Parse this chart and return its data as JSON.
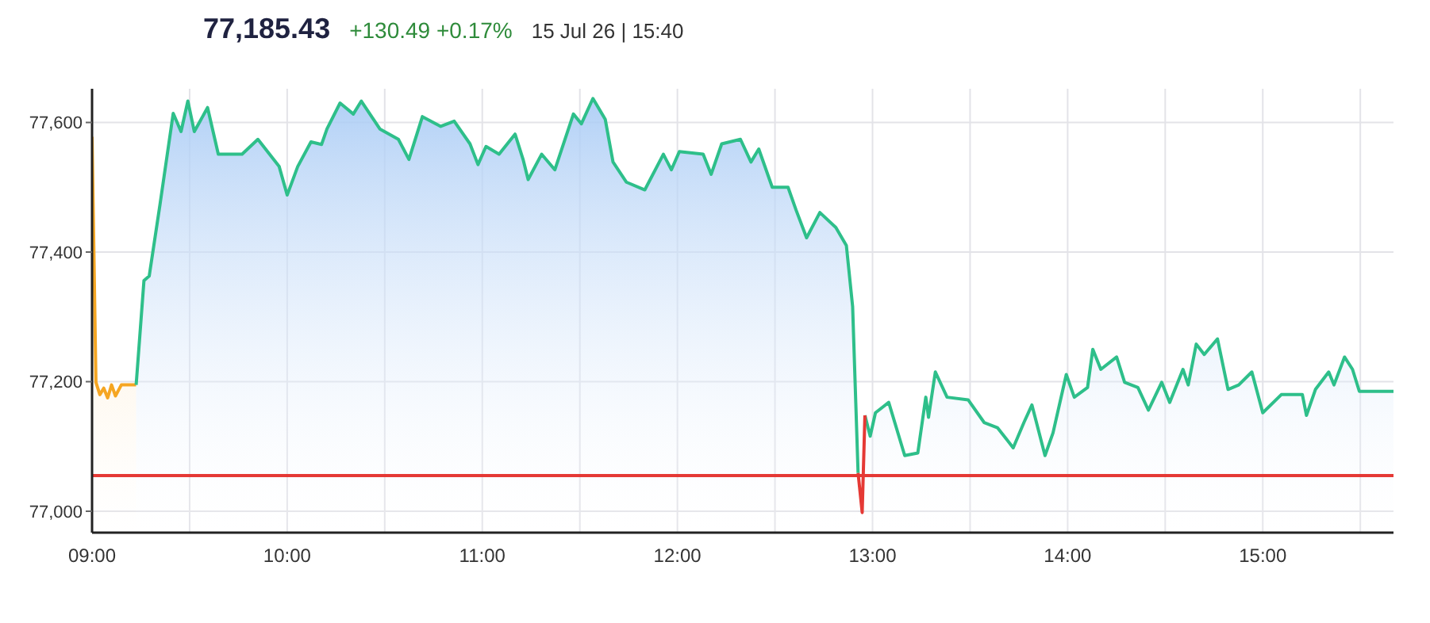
{
  "chart_data": {
    "type": "area",
    "title": "77,185.43",
    "subtitle": "+130.49 +0.17%",
    "annotations": [
      "15 Jul 26 | 15:40"
    ],
    "xlim": [
      9,
      15.67
    ],
    "xticks": [
      {
        "value": 9,
        "label": "09:00"
      },
      {
        "value": 9.5,
        "label": null
      },
      {
        "value": 10,
        "label": "10:00"
      },
      {
        "value": 10.5,
        "label": null
      },
      {
        "value": 11,
        "label": "11:00"
      },
      {
        "value": 11.5,
        "label": null
      },
      {
        "value": 12,
        "label": "12:00"
      },
      {
        "value": 12.5,
        "label": null
      },
      {
        "value": 13,
        "label": "13:00"
      },
      {
        "value": 13.5,
        "label": null
      },
      {
        "value": 14,
        "label": "14:00"
      },
      {
        "value": 14.5,
        "label": null
      },
      {
        "value": 15,
        "label": "15:00"
      },
      {
        "value": 15.5,
        "label": null
      }
    ],
    "ylim": [
      76967,
      77652
    ],
    "yticks": [
      {
        "value": 77000,
        "label": "77,000"
      },
      {
        "value": 77200,
        "label": "77,200"
      },
      {
        "value": 77400,
        "label": "77,400"
      },
      {
        "value": 77600,
        "label": "77,600"
      }
    ],
    "grid": true,
    "ref_lines": [
      {
        "axis": "y",
        "value": 77055,
        "color": "#e53935"
      }
    ],
    "series": [
      {
        "color": "#f5a623",
        "x": [
          9,
          9.02,
          9.04,
          9.06,
          9.08,
          9.1,
          9.12,
          9.15,
          9.2,
          9.226
        ],
        "values": [
          77578,
          77199,
          77180,
          77190,
          77175,
          77195,
          77178,
          77195,
          77195,
          77195
        ]
      },
      {
        "color": "#2ebf8a",
        "x": [
          9.226,
          9.266,
          9.293,
          9.348,
          9.416,
          9.456,
          9.491,
          9.524,
          9.592,
          9.647,
          9.769,
          9.85,
          9.959,
          10.0,
          10.054,
          10.122,
          10.176,
          10.204,
          10.271,
          10.339,
          10.38,
          10.475,
          10.57,
          10.624,
          10.693,
          10.787,
          10.856,
          10.937,
          10.978,
          11.019,
          11.086,
          11.168,
          11.209,
          11.235,
          11.304,
          11.372,
          11.467,
          11.508,
          11.567,
          11.63,
          11.67,
          11.738,
          11.833,
          11.928,
          11.969,
          12.01,
          12.132,
          12.173,
          12.227,
          12.323,
          12.377,
          12.417,
          12.486,
          12.567,
          12.608,
          12.662,
          12.73,
          12.812,
          12.866,
          12.898,
          12.926,
          null,
          12.961,
          12.988,
          13.015,
          13.083,
          13.165,
          13.232,
          13.273,
          13.287,
          13.322,
          13.382,
          13.49,
          13.572,
          13.64,
          13.721,
          13.776,
          13.817,
          13.884,
          13.925,
          13.993,
          14.034,
          14.102,
          14.129,
          14.17,
          14.251,
          14.292,
          14.36,
          14.414,
          14.482,
          14.523,
          14.591,
          14.618,
          14.659,
          14.7,
          14.768,
          14.822,
          14.877,
          14.944,
          15.0,
          15.095,
          15.203,
          15.224,
          15.27,
          15.338,
          15.365,
          15.419,
          15.46,
          15.495,
          15.67
        ],
        "values": [
          77195,
          77356,
          77363,
          77473,
          77614,
          77586,
          77633,
          77586,
          77623,
          77551,
          77551,
          77574,
          77532,
          77488,
          77532,
          77570,
          77566,
          77590,
          77630,
          77613,
          77633,
          77590,
          77574,
          77543,
          77609,
          77594,
          77602,
          77567,
          77535,
          77563,
          77551,
          77582,
          77543,
          77512,
          77551,
          77527,
          77613,
          77598,
          77637,
          77605,
          77539,
          77508,
          77496,
          77551,
          77527,
          77555,
          77551,
          77520,
          77567,
          77574,
          77539,
          77559,
          77500,
          77500,
          77465,
          77422,
          77461,
          77438,
          77410,
          77316,
          77059,
          null,
          77148,
          77116,
          77152,
          77168,
          77086,
          77090,
          77176,
          77145,
          77215,
          77176,
          77172,
          77137,
          77129,
          77098,
          77137,
          77164,
          77086,
          77121,
          77211,
          77176,
          77191,
          77250,
          77219,
          77238,
          77199,
          77191,
          77156,
          77199,
          77168,
          77219,
          77195,
          77258,
          77242,
          77266,
          77188,
          77195,
          77215,
          77152,
          77180,
          77180,
          77148,
          77188,
          77215,
          77195,
          77238,
          77219,
          77185,
          77185
        ]
      },
      {
        "type": "line",
        "color": "#e53935",
        "x": [
          12.926,
          12.947,
          12.961
        ],
        "values": [
          77059,
          76998,
          77148
        ]
      }
    ]
  }
}
